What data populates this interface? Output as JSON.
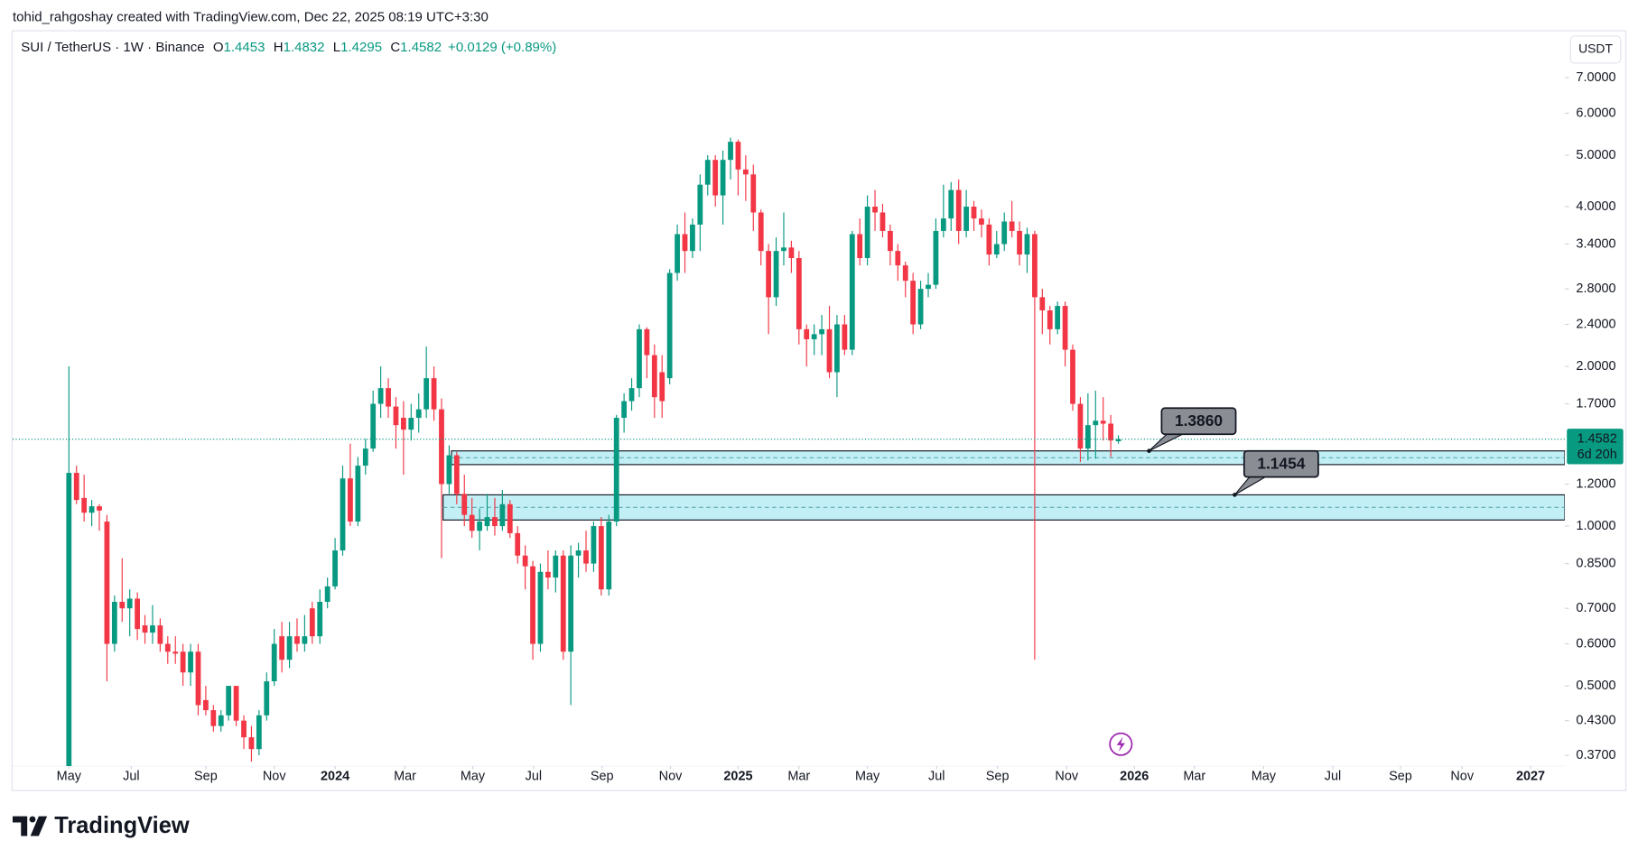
{
  "chart_data": {
    "type": "candlestick",
    "credit": "tohid_rahgoshay created with TradingView.com, Dec 22, 2025 08:19 UTC+3:30",
    "symbol": "SUI / TetherUS · 1W · Binance",
    "ohlc": [
      {
        "key": "O",
        "value": "1.4453"
      },
      {
        "key": "H",
        "value": "1.4832"
      },
      {
        "key": "L",
        "value": "1.4295"
      },
      {
        "key": "C",
        "value": "1.4582"
      }
    ],
    "change": "+0.0129 (+0.89%)",
    "currency": "USDT",
    "countdown": "6d 20h",
    "brand": "TradingView",
    "up_color": "#089981",
    "down_color": "#f23645",
    "log_scale": true,
    "open": [
      0.34,
      1.26,
      1.13,
      1.06,
      1.09,
      1.02,
      0.6,
      0.72,
      0.7,
      0.73,
      0.65,
      0.63,
      0.65,
      0.6,
      0.58,
      0.58,
      0.53,
      0.58,
      0.47,
      0.45,
      0.42,
      0.44,
      0.5,
      0.43,
      0.4,
      0.38,
      0.44,
      0.51,
      0.62,
      0.56,
      0.62,
      0.6,
      0.7,
      0.62,
      0.72,
      0.77,
      0.9,
      1.23,
      1.02,
      1.3,
      1.4,
      1.7,
      1.82,
      1.68,
      1.6,
      1.52,
      1.6,
      1.66,
      1.9,
      1.66,
      1.2,
      1.36,
      1.15,
      1.05,
      0.98,
      1.0,
      1.04,
      1.0,
      1.1,
      0.97,
      0.88,
      0.84,
      0.6,
      0.82,
      0.8,
      0.88,
      0.58,
      0.88,
      0.9,
      0.85,
      1.0,
      0.76,
      1.02,
      1.6,
      1.72,
      1.82,
      2.35,
      2.1,
      1.95,
      1.9,
      3.0,
      3.55,
      3.3,
      3.7,
      4.4,
      4.9,
      4.2,
      4.9,
      5.3,
      4.7,
      4.6,
      3.9,
      3.3,
      2.7,
      3.3,
      3.35,
      3.2,
      2.35,
      2.25,
      2.3,
      2.35,
      1.95,
      2.4,
      2.15,
      3.55,
      3.2,
      4.0,
      3.9,
      3.6,
      3.3,
      3.1,
      2.9,
      2.4,
      2.8,
      2.85,
      3.6,
      3.8,
      4.3,
      3.6,
      4.0,
      3.8,
      3.7,
      3.25,
      3.4,
      3.75,
      3.6,
      3.25,
      3.55,
      2.7,
      2.55,
      2.35,
      2.6,
      2.15,
      1.7,
      1.4,
      1.55,
      1.58,
      1.56,
      1.4453
    ],
    "high": [
      2.0,
      1.3,
      1.25,
      1.12,
      1.1,
      1.05,
      0.74,
      0.87,
      0.76,
      0.75,
      0.68,
      0.71,
      0.67,
      0.62,
      0.62,
      0.6,
      0.6,
      0.6,
      0.5,
      0.46,
      0.45,
      0.5,
      0.5,
      0.44,
      0.42,
      0.45,
      0.53,
      0.64,
      0.66,
      0.66,
      0.67,
      0.68,
      0.72,
      0.76,
      0.8,
      0.95,
      1.3,
      1.43,
      1.35,
      1.46,
      1.8,
      2.0,
      1.9,
      1.75,
      1.72,
      1.7,
      1.78,
      2.18,
      2.0,
      1.74,
      1.42,
      1.38,
      1.25,
      1.13,
      1.08,
      1.15,
      1.13,
      1.17,
      1.12,
      1.0,
      0.92,
      0.86,
      0.85,
      0.9,
      0.9,
      0.9,
      0.92,
      0.93,
      0.98,
      1.02,
      1.04,
      1.05,
      1.62,
      1.78,
      1.9,
      2.4,
      2.37,
      2.2,
      2.1,
      3.05,
      3.7,
      3.9,
      3.8,
      4.6,
      5.0,
      5.0,
      5.1,
      5.4,
      5.35,
      5.0,
      4.8,
      3.95,
      3.4,
      3.5,
      3.9,
      3.45,
      3.3,
      2.4,
      2.4,
      2.5,
      2.6,
      2.5,
      2.5,
      3.6,
      3.8,
      4.2,
      4.3,
      4.05,
      3.7,
      3.4,
      3.15,
      3.0,
      2.9,
      3.0,
      3.8,
      4.4,
      4.45,
      4.5,
      4.3,
      4.1,
      3.95,
      3.8,
      3.6,
      3.9,
      4.1,
      3.75,
      3.65,
      3.6,
      2.8,
      2.6,
      2.65,
      2.65,
      2.2,
      1.75,
      1.78,
      1.8,
      1.75,
      1.62,
      1.4832
    ],
    "low": [
      0.34,
      1.1,
      1.02,
      1.0,
      0.98,
      0.51,
      0.58,
      0.66,
      0.62,
      0.61,
      0.6,
      0.6,
      0.58,
      0.55,
      0.55,
      0.5,
      0.5,
      0.44,
      0.44,
      0.41,
      0.41,
      0.43,
      0.42,
      0.38,
      0.36,
      0.37,
      0.43,
      0.5,
      0.53,
      0.54,
      0.58,
      0.58,
      0.6,
      0.6,
      0.7,
      0.76,
      0.88,
      1.0,
      1.0,
      1.25,
      1.38,
      1.6,
      1.6,
      1.4,
      1.25,
      1.45,
      1.5,
      1.6,
      1.58,
      0.87,
      1.15,
      1.1,
      1.0,
      0.95,
      0.9,
      0.98,
      0.96,
      0.98,
      0.95,
      0.85,
      0.76,
      0.56,
      0.58,
      0.76,
      0.75,
      0.56,
      0.46,
      0.8,
      0.82,
      0.82,
      0.74,
      0.74,
      1.0,
      1.5,
      1.65,
      1.75,
      1.9,
      1.6,
      1.6,
      1.85,
      2.9,
      3.0,
      3.2,
      3.3,
      4.2,
      4.0,
      3.7,
      4.5,
      4.2,
      4.1,
      3.6,
      3.1,
      2.3,
      2.6,
      3.1,
      3.0,
      2.2,
      2.0,
      2.1,
      2.1,
      1.9,
      1.75,
      2.1,
      2.1,
      3.1,
      3.1,
      3.6,
      3.5,
      3.1,
      2.9,
      2.7,
      2.3,
      2.35,
      2.7,
      2.8,
      3.5,
      3.6,
      3.4,
      3.5,
      3.6,
      3.5,
      3.1,
      3.2,
      3.3,
      3.5,
      3.1,
      3.0,
      0.56,
      2.3,
      2.2,
      2.3,
      2.0,
      1.65,
      1.32,
      1.33,
      1.34,
      1.45,
      1.35,
      1.4295
    ],
    "close": [
      1.26,
      1.12,
      1.06,
      1.09,
      1.07,
      0.6,
      0.72,
      0.7,
      0.73,
      0.64,
      0.63,
      0.65,
      0.6,
      0.58,
      0.575,
      0.53,
      0.58,
      0.46,
      0.45,
      0.42,
      0.44,
      0.5,
      0.43,
      0.4,
      0.38,
      0.44,
      0.51,
      0.6,
      0.56,
      0.62,
      0.6,
      0.62,
      0.62,
      0.72,
      0.77,
      0.9,
      1.23,
      1.02,
      1.3,
      1.4,
      1.7,
      1.82,
      1.68,
      1.55,
      1.52,
      1.6,
      1.66,
      1.9,
      1.66,
      1.2,
      1.36,
      1.15,
      1.05,
      0.98,
      1.02,
      1.04,
      1.0,
      1.1,
      0.97,
      0.88,
      0.84,
      0.6,
      0.82,
      0.8,
      0.88,
      0.58,
      0.88,
      0.9,
      0.85,
      1.0,
      0.76,
      1.02,
      1.6,
      1.72,
      1.82,
      2.35,
      2.1,
      1.75,
      1.72,
      3.0,
      3.55,
      3.3,
      3.7,
      4.4,
      4.9,
      4.2,
      4.9,
      5.3,
      4.7,
      4.6,
      3.9,
      3.3,
      2.7,
      3.3,
      3.35,
      3.2,
      2.35,
      2.25,
      2.3,
      2.35,
      1.95,
      2.4,
      2.15,
      3.55,
      3.2,
      4.0,
      3.9,
      3.6,
      3.3,
      3.1,
      2.9,
      2.4,
      2.8,
      2.85,
      3.6,
      3.8,
      4.3,
      3.6,
      4.0,
      3.8,
      3.7,
      3.25,
      3.4,
      3.75,
      3.6,
      3.25,
      3.55,
      2.7,
      2.55,
      2.35,
      2.6,
      2.15,
      1.7,
      1.4,
      1.55,
      1.58,
      1.56,
      1.45,
      1.4582
    ],
    "xlim": [
      -7.4,
      196.7
    ],
    "xticks": [
      {
        "value": 0,
        "label": "May"
      },
      {
        "value": 8.2,
        "label": "Jul"
      },
      {
        "value": 18,
        "label": "Sep"
      },
      {
        "value": 27,
        "label": "Nov"
      },
      {
        "value": 35,
        "label": "2024"
      },
      {
        "value": 44.2,
        "label": "Mar"
      },
      {
        "value": 53.1,
        "label": "May"
      },
      {
        "value": 61.1,
        "label": "Jul"
      },
      {
        "value": 70.1,
        "label": "Sep"
      },
      {
        "value": 79.1,
        "label": "Nov"
      },
      {
        "value": 88,
        "label": "2025"
      },
      {
        "value": 96,
        "label": "Mar"
      },
      {
        "value": 105,
        "label": "May"
      },
      {
        "value": 114.1,
        "label": "Jul"
      },
      {
        "value": 122.1,
        "label": "Sep"
      },
      {
        "value": 131.2,
        "label": "Nov"
      },
      {
        "value": 140.1,
        "label": "2026"
      },
      {
        "value": 148,
        "label": "Mar"
      },
      {
        "value": 157.1,
        "label": "May"
      },
      {
        "value": 166.2,
        "label": "Jul"
      },
      {
        "value": 175.1,
        "label": "Sep"
      },
      {
        "value": 183.2,
        "label": "Nov"
      },
      {
        "value": 192.2,
        "label": "2027"
      }
    ],
    "ylim": [
      0.353,
      8.56
    ],
    "yticks": [
      {
        "value": 7,
        "label": "7.0000"
      },
      {
        "value": 6,
        "label": "6.0000"
      },
      {
        "value": 5,
        "label": "5.0000"
      },
      {
        "value": 4,
        "label": "4.0000"
      },
      {
        "value": 3.4,
        "label": "3.4000"
      },
      {
        "value": 2.8,
        "label": "2.8000"
      },
      {
        "value": 2.4,
        "label": "2.4000"
      },
      {
        "value": 2,
        "label": "2.0000"
      },
      {
        "value": 1.7,
        "label": "1.7000"
      },
      {
        "value": 1.2,
        "label": "1.2000"
      },
      {
        "value": 1,
        "label": "1.0000"
      },
      {
        "value": 0.85,
        "label": "0.8500"
      },
      {
        "value": 0.7,
        "label": "0.7000"
      },
      {
        "value": 0.6,
        "label": "0.6000"
      },
      {
        "value": 0.5,
        "label": "0.5000"
      },
      {
        "value": 0.43,
        "label": "0.4300"
      },
      {
        "value": 0.37,
        "label": "0.3700"
      }
    ],
    "zones": [
      {
        "top": 1.386,
        "bottom": 1.306,
        "start": 50.3,
        "label": "1.3860"
      },
      {
        "top": 1.1454,
        "bottom": 1.027,
        "start": 49.2,
        "label": "1.1454"
      }
    ],
    "zone_color": "#b2ebf2"
  }
}
